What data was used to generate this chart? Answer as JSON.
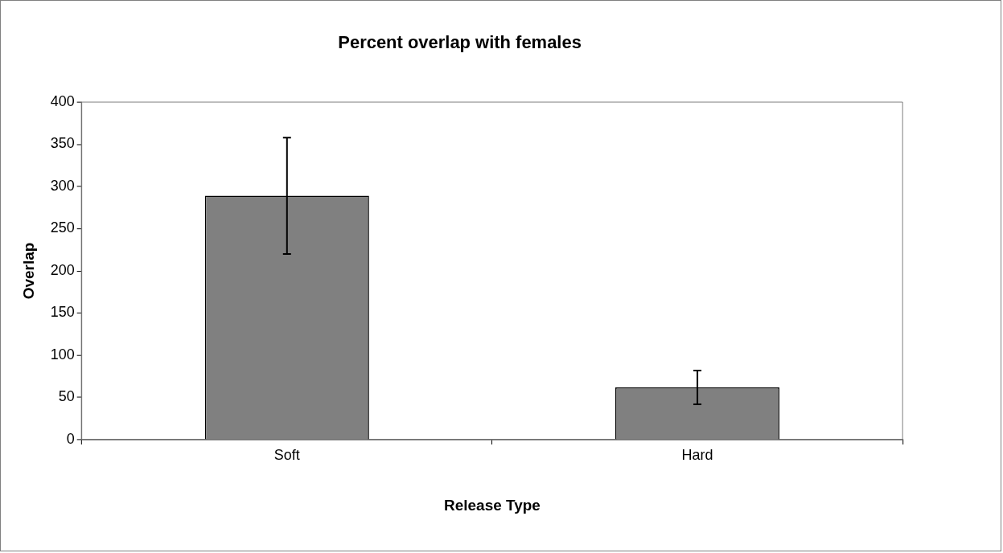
{
  "chart_data": {
    "type": "bar",
    "title": "Percent overlap with females",
    "xlabel": "Release Type",
    "ylabel": "Overlap",
    "categories": [
      "Soft",
      "Hard"
    ],
    "values": [
      289,
      62
    ],
    "errors": [
      69,
      20
    ],
    "color": "#808080",
    "ylim": [
      0,
      400
    ],
    "yticks": [
      0,
      50,
      100,
      150,
      200,
      250,
      300,
      350,
      400
    ],
    "grid": false,
    "legend": false
  }
}
